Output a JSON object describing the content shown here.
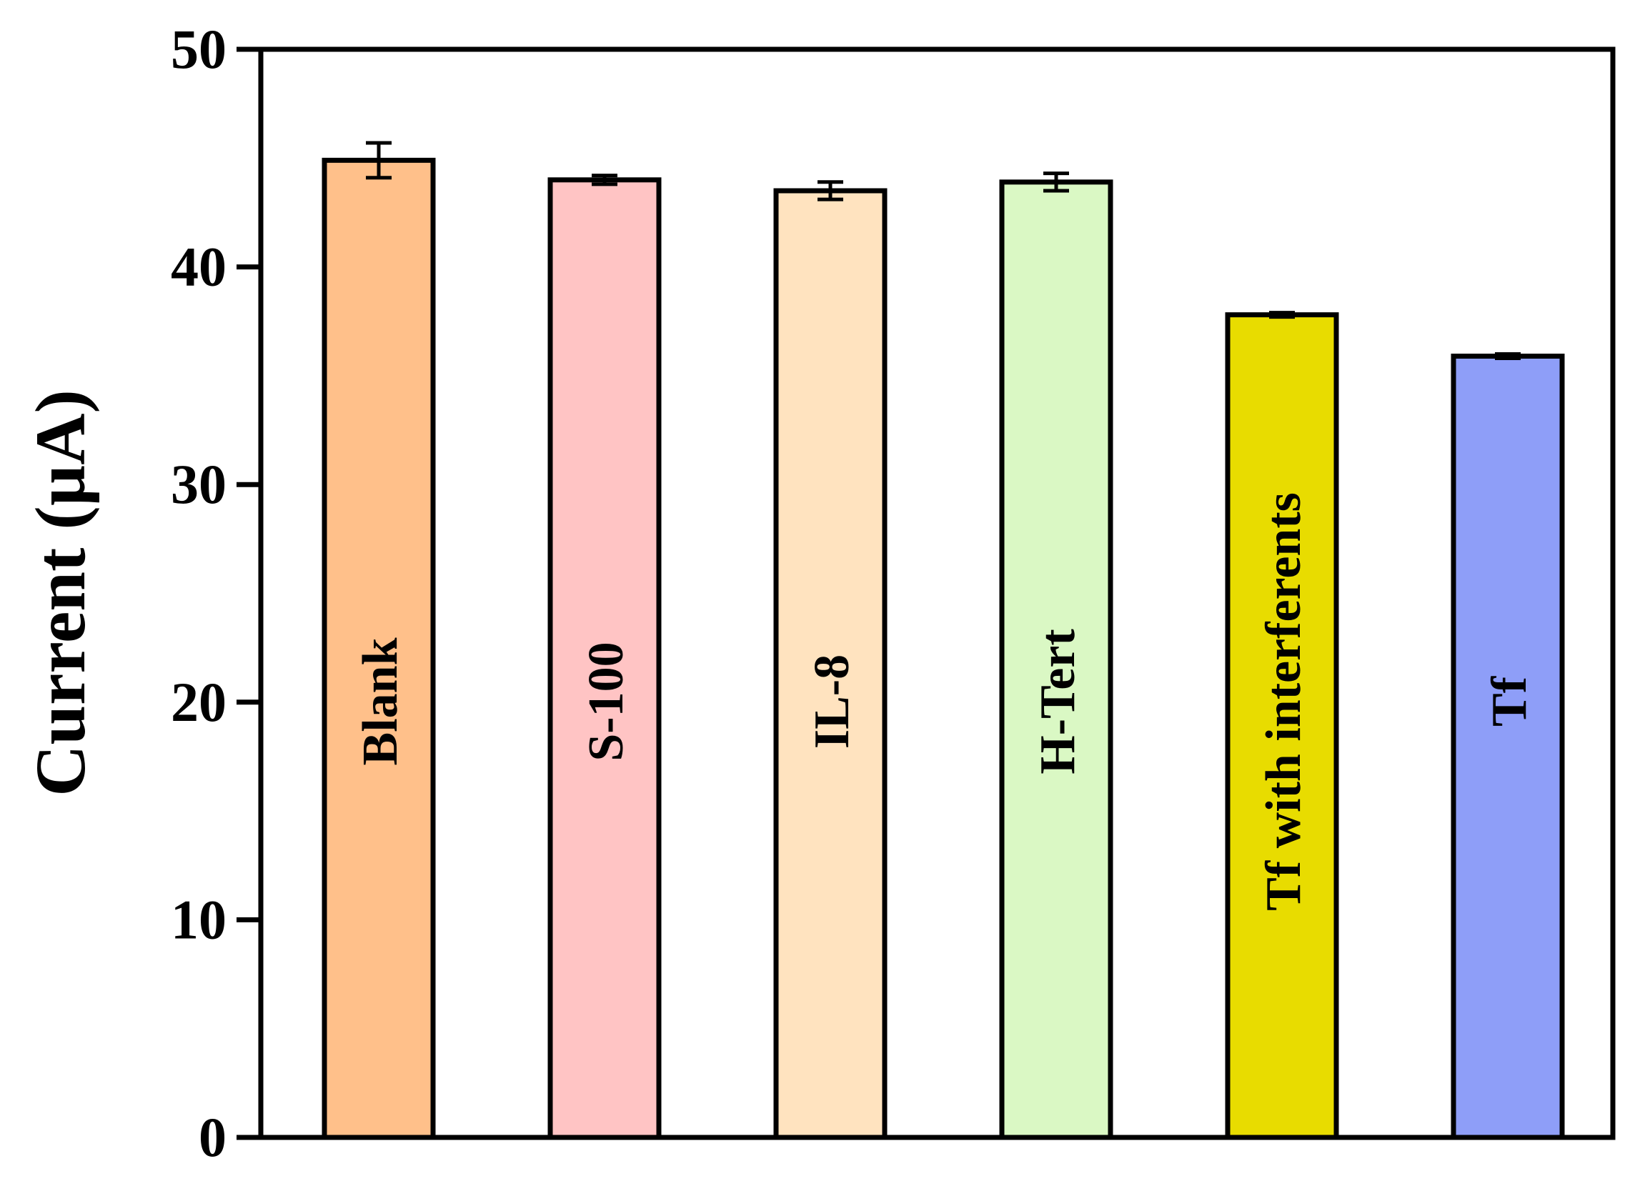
{
  "chart_data": {
    "type": "bar",
    "categories": [
      "Blank",
      "S-100",
      "IL-8",
      "H-Tert",
      "Tf with interferents",
      "Tf"
    ],
    "values": [
      44.9,
      44.0,
      43.5,
      43.9,
      37.8,
      35.9
    ],
    "errors": [
      0.8,
      0.2,
      0.4,
      0.4,
      0.1,
      0.1
    ],
    "colors": [
      "#FFC08A",
      "#FFC4C4",
      "#FFE3BF",
      "#DAF8C4",
      "#E8DC00",
      "#8E9EF8"
    ],
    "title": "",
    "xlabel": "",
    "ylabel": "Current (µA)",
    "ylim": [
      0,
      50
    ],
    "yticks": [
      "0",
      "10",
      "20",
      "30",
      "40",
      "50"
    ],
    "grid": false,
    "legend": "none",
    "category_labels_inside_bars": true
  }
}
